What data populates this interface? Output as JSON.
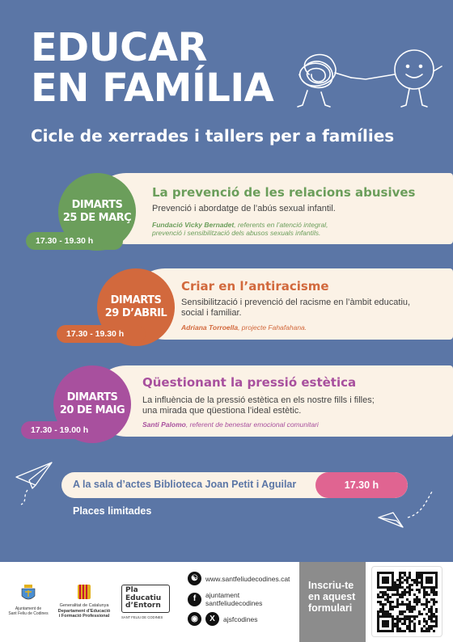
{
  "title_line1": "EDUCAR",
  "title_line2": "EN FAMÍLIA",
  "subtitle": "Cicle de xerrades i tallers per a famílies",
  "sessions": [
    {
      "day": "DIMARTS",
      "date": "25 DE MARÇ",
      "time": "17.30 - 19.30 h",
      "title": "La prevenció de les relacions abusives",
      "description": "Prevenció i abordatge de l’abús sexual infantil.",
      "speaker_name": "Fundació Vicky Bernadet",
      "speaker_role_line1": ", referents en l’atenció integral,",
      "speaker_role_line2": "prevenció i sensibilització dels abusos sexuals infantils.",
      "color": "#6b9e5b"
    },
    {
      "day": "DIMARTS",
      "date": "29 D’ABRIL",
      "time": "17.30 - 19.30 h",
      "title": "Criar en l’antiracisme",
      "description_line1": "Sensibilització i prevenció del racisme en l’àmbit educatiu,",
      "description_line2": "social i familiar.",
      "speaker_name": "Adriana Torroella",
      "speaker_role": ", projecte Fahafahana.",
      "color": "#d2693d"
    },
    {
      "day": "DIMARTS",
      "date": "20 DE MAIG",
      "time": "17.30 - 19.00 h",
      "title": "Qüestionant la pressió estètica",
      "description_line1": "La influència de la pressió estètica en els nostre fills i filles;",
      "description_line2": "una mirada que qüestiona l’ideal estètic.",
      "speaker_name": "Santi Palomo",
      "speaker_role": ", referent de benestar emocional comunitari",
      "color": "#a8509e"
    }
  ],
  "venue": {
    "text": "A la sala d’actes Biblioteca Joan Petit i Aguilar",
    "time": "17.30 h"
  },
  "places": "Places limitades",
  "footer": {
    "ajuntament_line1": "Ajuntament de",
    "ajuntament_line2": "Sant Feliu de Codines",
    "generalitat_line1": "Generalitat de Catalunya",
    "generalitat_line2": "Departament d’Educació",
    "generalitat_line3": "i Formació Professional",
    "pla_line1": "Pla",
    "pla_line2": "Educatiu",
    "pla_line3": "d’Entorn",
    "pla_line4": "SANT FELIU DE CODINES",
    "web": "www.santfeliudecodines.cat",
    "facebook_line1": "ajuntament",
    "facebook_line2": "santfeliudecodines",
    "insta_x": "ajsfcodines",
    "cta_line1": "Inscriu-te",
    "cta_line2": "en aquest",
    "cta_line3": "formulari"
  },
  "icons": {
    "web": "globe-icon",
    "facebook": "facebook-icon",
    "instagram": "instagram-icon",
    "x": "x-icon",
    "qr": "qr-code"
  }
}
